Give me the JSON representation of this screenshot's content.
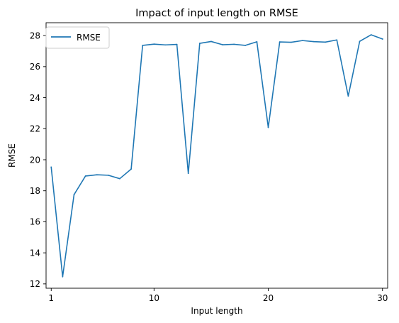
{
  "chart_data": {
    "type": "line",
    "title": "Impact of input length on RMSE",
    "xlabel": "Input length",
    "ylabel": "RMSE",
    "xlim": [
      0.55,
      30.45
    ],
    "ylim": [
      11.72,
      28.83
    ],
    "x_ticks": [
      1,
      10,
      20,
      30
    ],
    "x_tick_labels": [
      "1",
      "10",
      "20",
      "30"
    ],
    "y_ticks": [
      12,
      14,
      16,
      18,
      20,
      22,
      24,
      26,
      28
    ],
    "y_tick_labels": [
      "12",
      "14",
      "16",
      "18",
      "20",
      "22",
      "24",
      "26",
      "28"
    ],
    "grid": false,
    "legend": {
      "position": "top-left",
      "entries": [
        "RMSE"
      ]
    },
    "series": [
      {
        "name": "RMSE",
        "color": "#1f77b4",
        "x": [
          1,
          2,
          3,
          4,
          5,
          6,
          7,
          8,
          9,
          10,
          11,
          12,
          13,
          14,
          15,
          16,
          17,
          18,
          19,
          20,
          21,
          22,
          23,
          24,
          25,
          26,
          27,
          28,
          29,
          30
        ],
        "values": [
          19.52,
          12.46,
          17.75,
          18.95,
          19.03,
          19.0,
          18.78,
          19.4,
          27.37,
          27.45,
          27.4,
          27.43,
          19.12,
          27.5,
          27.62,
          27.41,
          27.44,
          27.37,
          27.6,
          22.08,
          27.59,
          27.57,
          27.68,
          27.61,
          27.58,
          27.72,
          24.1,
          27.63,
          28.05,
          27.78
        ]
      }
    ]
  }
}
